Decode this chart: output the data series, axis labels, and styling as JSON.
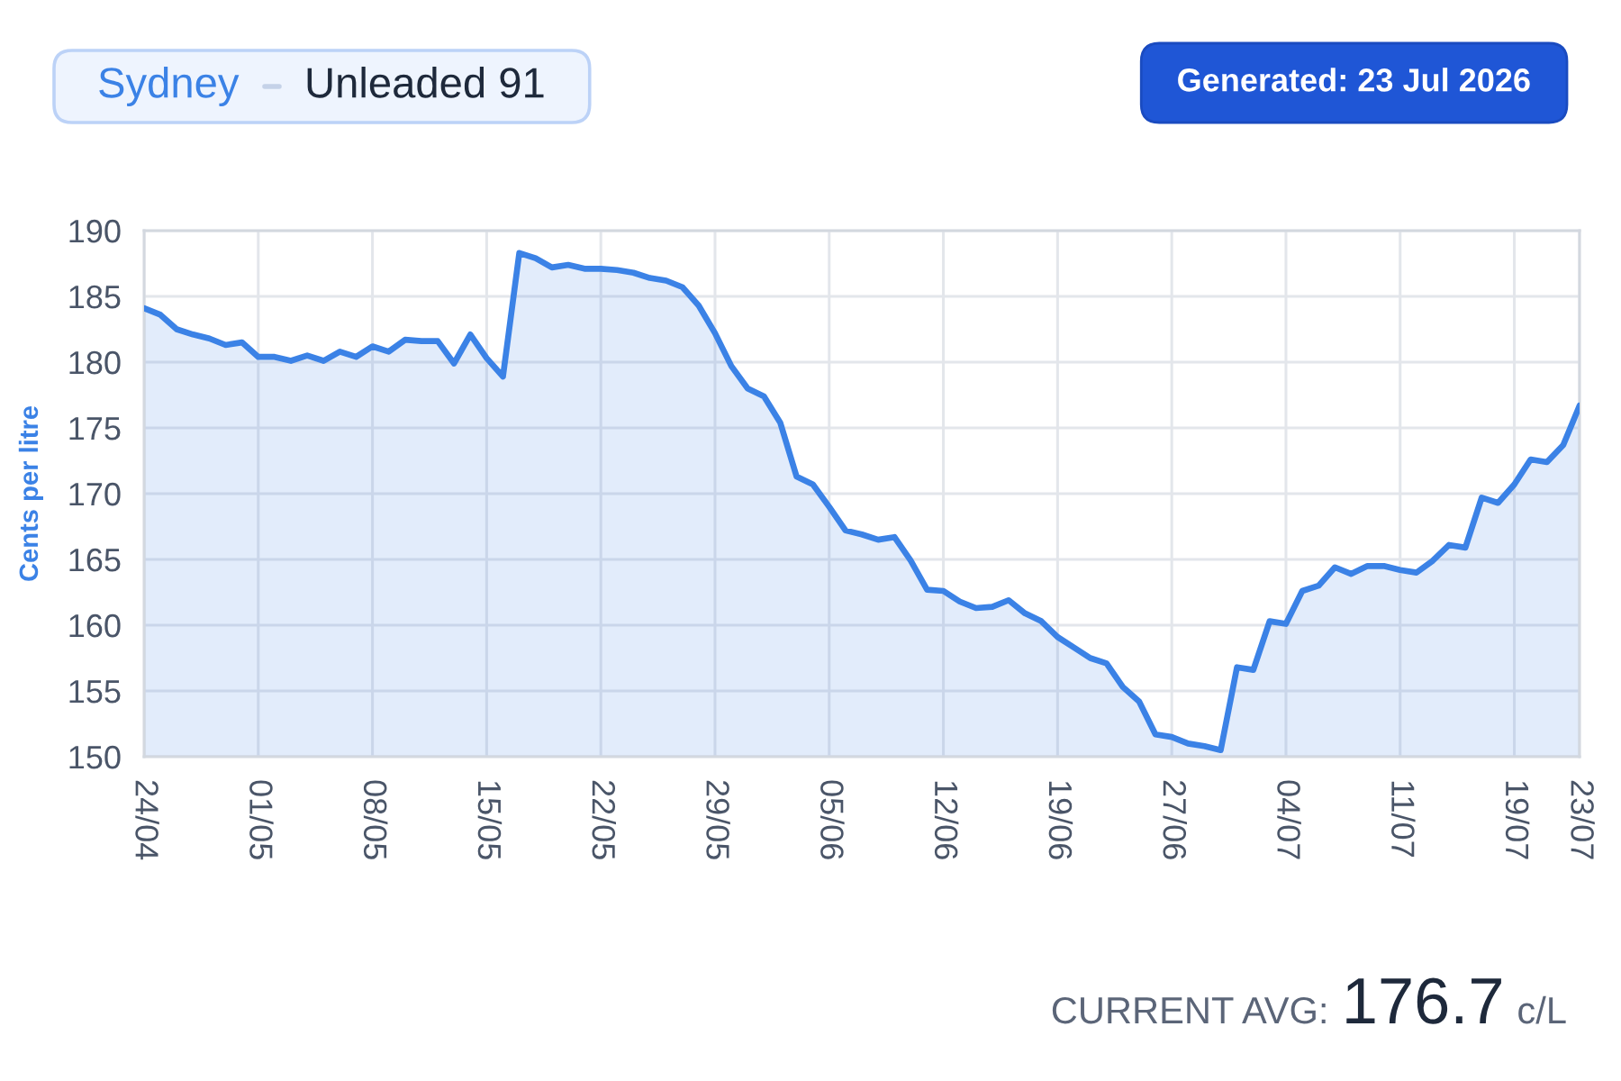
{
  "chart_data": {
    "type": "area",
    "title": "Sydney",
    "subtitle": "Unleaded 91",
    "ylabel": "Cents per litre",
    "annotations": [
      "Generated: 23 Jul 2026",
      "CURRENT AVG:",
      "176.7",
      "c/L"
    ],
    "categories": [
      "24/04",
      null,
      null,
      null,
      null,
      null,
      null,
      "01/05",
      null,
      null,
      null,
      null,
      null,
      null,
      "08/05",
      null,
      null,
      null,
      null,
      null,
      null,
      "15/05",
      null,
      null,
      null,
      null,
      null,
      null,
      "22/05",
      null,
      null,
      null,
      null,
      null,
      null,
      "29/05",
      null,
      null,
      null,
      null,
      null,
      null,
      "05/06",
      null,
      null,
      null,
      null,
      null,
      null,
      "12/06",
      null,
      null,
      null,
      null,
      null,
      null,
      "19/06",
      null,
      null,
      null,
      null,
      null,
      null,
      "27/06",
      null,
      null,
      null,
      null,
      null,
      null,
      "04/07",
      null,
      null,
      null,
      null,
      null,
      null,
      "11/07",
      null,
      null,
      null,
      null,
      null,
      null,
      "19/07",
      null,
      null,
      null,
      "23/07"
    ],
    "series": [
      {
        "color": "#3b82e6",
        "values": [
          184.1,
          183.6,
          182.5,
          182.1,
          181.8,
          181.3,
          181.5,
          180.4,
          180.4,
          180.1,
          180.5,
          180.1,
          180.8,
          180.4,
          181.2,
          180.8,
          181.7,
          181.6,
          181.6,
          179.9,
          182.1,
          180.3,
          178.9,
          188.3,
          187.9,
          187.2,
          187.4,
          187.1,
          187.1,
          187.0,
          186.8,
          186.4,
          186.2,
          185.7,
          184.3,
          182.2,
          179.7,
          178.0,
          177.4,
          175.4,
          171.3,
          170.7,
          169.0,
          167.2,
          166.9,
          166.5,
          166.7,
          164.9,
          162.7,
          162.6,
          161.8,
          161.3,
          161.4,
          161.9,
          160.9,
          160.3,
          159.1,
          158.3,
          157.5,
          157.1,
          155.3,
          154.2,
          151.7,
          151.5,
          151.0,
          150.8,
          150.5,
          156.8,
          156.6,
          160.3,
          160.1,
          162.6,
          163.0,
          164.4,
          163.9,
          164.5,
          164.5,
          164.2,
          164.0,
          164.9,
          166.1,
          165.9,
          169.7,
          169.3,
          170.7,
          172.6,
          172.4,
          173.7,
          176.7
        ]
      }
    ],
    "ylim": [
      150,
      190
    ],
    "yticks": [
      150,
      155,
      160,
      165,
      170,
      175,
      180,
      185,
      190
    ],
    "grid": true
  }
}
